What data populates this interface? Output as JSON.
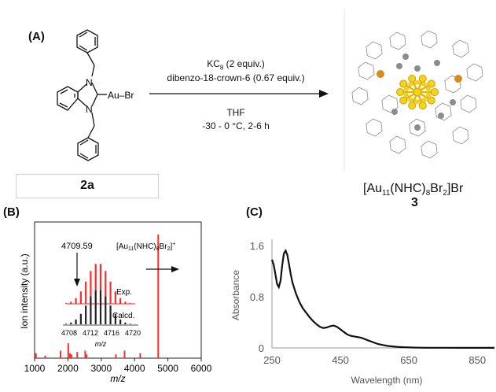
{
  "panelA": {
    "label": "(A)",
    "reactant_atoms": {
      "n1": "N",
      "n2": "N",
      "au_br": "Au–Br"
    },
    "conditions": {
      "line1": "KC8 (2 equiv.)",
      "line2": "dibenzo-18-crown-6 (0.67 equiv.)",
      "line3": "THF",
      "line4": "-30 - 0 °C, 2-6 h"
    },
    "reactant_id": "2a",
    "product_formula": "[Au11(NHC)8Br2]Br",
    "product_id": "3"
  },
  "panelB": {
    "label": "(B)",
    "ylabel": "Ion intensity (a.u.)",
    "xlabel": "m/z",
    "x_ticks": [
      "1000",
      "2000",
      "3000",
      "4000",
      "5000",
      "6000"
    ],
    "peak_label": "4709.59",
    "ion_label": "[Au11(NHC)8Br2]+",
    "inset": {
      "exp_label": "Exp.",
      "calc_label": "Calcd.",
      "x_ticks": [
        "4708",
        "4712",
        "4716",
        "4720"
      ],
      "xlabel": "m/z"
    },
    "colors": {
      "exp": "#ff2a2a",
      "calc": "#222222"
    }
  },
  "panelC": {
    "label": "(C)",
    "ylabel": "Absorbance",
    "xlabel": "Wavelength (nm)"
  },
  "chart_data": [
    {
      "type": "bar",
      "title": "",
      "xlabel": "m/z",
      "ylabel": "Ion intensity (a.u.)",
      "xlim": [
        1000,
        6000
      ],
      "x": [
        1040,
        1320,
        1780,
        2010,
        2060,
        2110,
        2280,
        2520,
        2560,
        3440,
        3700,
        4170,
        4709.59
      ],
      "values": [
        0.04,
        0.02,
        0.06,
        0.12,
        0.04,
        0.03,
        0.05,
        0.06,
        0.03,
        0.03,
        0.06,
        0.04,
        1.0
      ],
      "color": "#ff2a2a"
    },
    {
      "type": "line",
      "title": "",
      "xlabel": "Wavelength (nm)",
      "ylabel": "Absorbance",
      "x_ticks": [
        250,
        450,
        650,
        850
      ],
      "y_ticks": [
        0,
        0.8,
        1.6
      ],
      "xlim": [
        250,
        900
      ],
      "ylim": [
        0,
        1.6
      ],
      "x": [
        250,
        255,
        260,
        265,
        270,
        275,
        280,
        285,
        290,
        295,
        300,
        305,
        310,
        320,
        330,
        340,
        350,
        360,
        370,
        380,
        390,
        400,
        410,
        420,
        430,
        440,
        450,
        460,
        470,
        480,
        490,
        500,
        510,
        520,
        530,
        540,
        550,
        560,
        570,
        580,
        590,
        600,
        620,
        640,
        660,
        680,
        700,
        750,
        800,
        850,
        900
      ],
      "y": [
        1.38,
        1.3,
        1.15,
        1.0,
        0.95,
        1.05,
        1.3,
        1.48,
        1.52,
        1.45,
        1.3,
        1.15,
        1.02,
        0.85,
        0.72,
        0.62,
        0.55,
        0.48,
        0.42,
        0.37,
        0.33,
        0.31,
        0.32,
        0.34,
        0.35,
        0.33,
        0.29,
        0.25,
        0.21,
        0.19,
        0.18,
        0.17,
        0.16,
        0.14,
        0.12,
        0.1,
        0.08,
        0.06,
        0.05,
        0.04,
        0.03,
        0.025,
        0.015,
        0.01,
        0.006,
        0.004,
        0.003,
        0.002,
        0.001,
        0.001,
        0.001
      ],
      "color": "#111111"
    }
  ]
}
